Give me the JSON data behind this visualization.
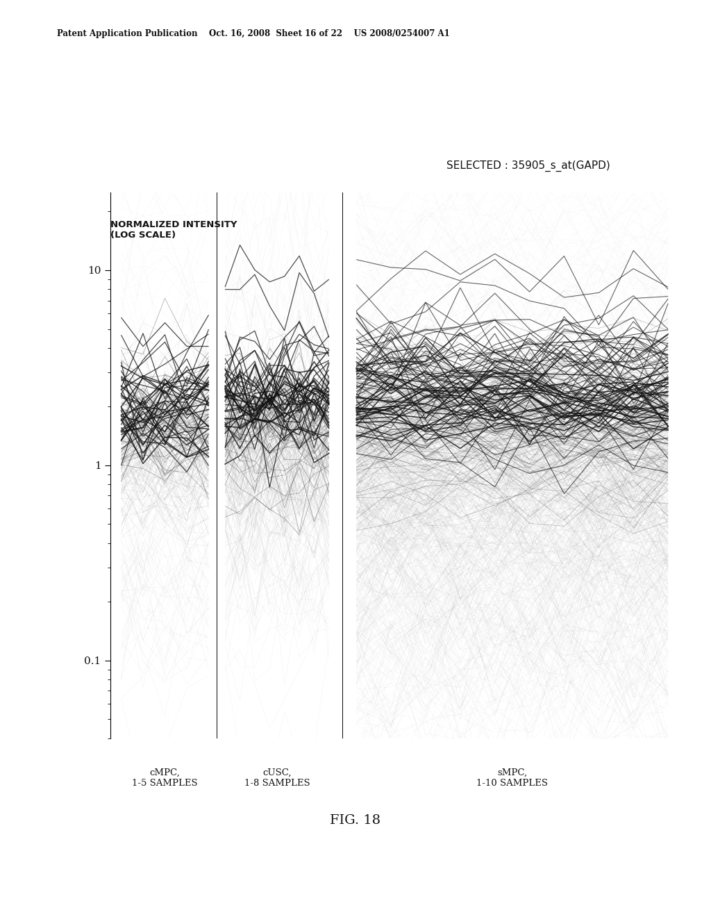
{
  "header_text": "Patent Application Publication    Oct. 16, 2008  Sheet 16 of 22    US 2008/0254007 A1",
  "figure_label": "FIG. 18",
  "selected_label": "SELECTED : 35905_s_at(GAPD)",
  "ylabel": "NORMALIZED INTENSITY\n(LOG SCALE)",
  "group1_label": "cMPC,\n1-5 SAMPLES",
  "group2_label": "cUSC,\n1-8 SAMPLES",
  "group3_label": "sMPC,\n1-10 SAMPLES",
  "background_color": "#ffffff",
  "group1_n_samples": 5,
  "group2_n_samples": 8,
  "group3_n_samples": 10,
  "seed": 42
}
